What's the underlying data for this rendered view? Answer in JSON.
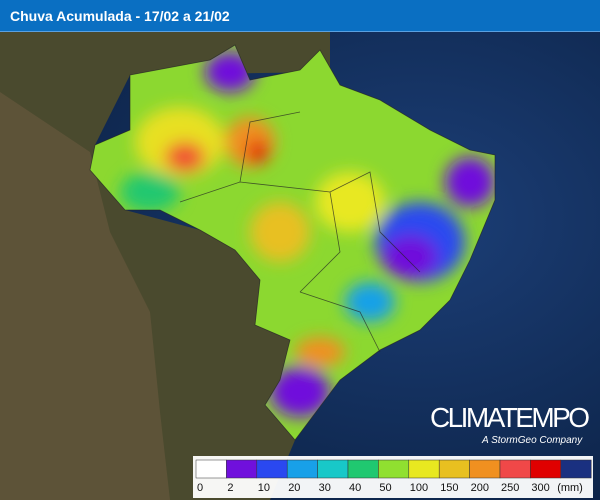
{
  "header": {
    "title": "Chuva Acumulada - 17/02 a 21/02"
  },
  "brand": {
    "name": "CLIMATEMPO",
    "tagline": "A StormGeo Company"
  },
  "legend": {
    "labels": [
      0,
      2,
      10,
      20,
      30,
      40,
      50,
      100,
      150,
      200,
      250,
      300
    ],
    "unit": "(mm)",
    "colors": [
      "#ffffff",
      "#7010dc",
      "#2a48f0",
      "#18a0e8",
      "#18c8c8",
      "#20c870",
      "#90e030",
      "#e8e820",
      "#e8c020",
      "#f09020",
      "#f04848",
      "#e00000",
      "#1a3080"
    ]
  }
}
